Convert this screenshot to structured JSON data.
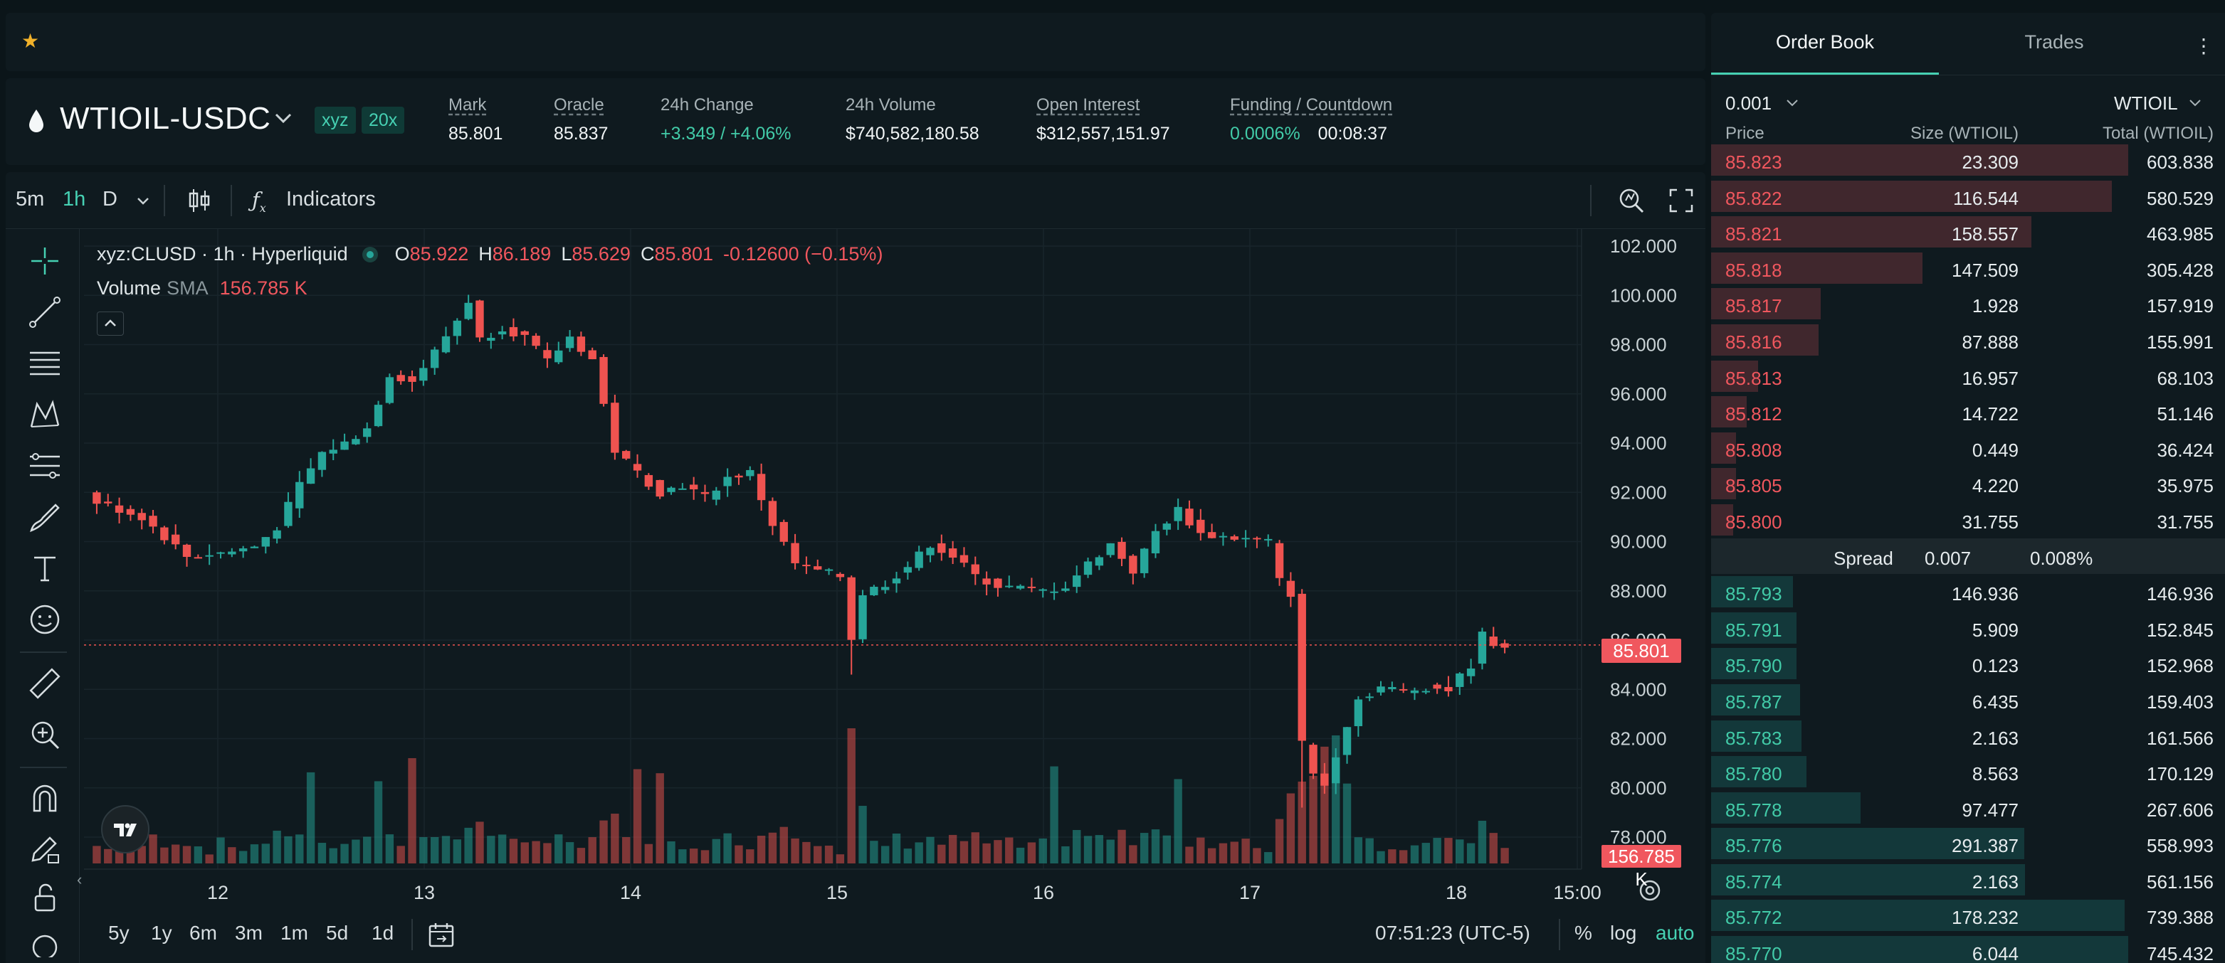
{
  "favorites": {
    "star_icon": "star-icon"
  },
  "market": {
    "symbol": "WTIOIL-USDC",
    "badge_dex": "xyz",
    "badge_leverage": "20x",
    "stats": [
      {
        "label": "Mark",
        "value": "85.801"
      },
      {
        "label": "Oracle",
        "value": "85.837"
      },
      {
        "label": "24h Change",
        "value": "+3.349 / +4.06%"
      },
      {
        "label": "24h Volume",
        "value": "$740,582,180.58"
      },
      {
        "label": "Open Interest",
        "value": "$312,557,151.97"
      },
      {
        "label": "Funding / Countdown",
        "value": "0.0006%",
        "value2": "00:08:37"
      }
    ]
  },
  "toolbar": {
    "intervals": [
      "5m",
      "1h",
      "D"
    ],
    "active_interval": "1h",
    "indicators_label": "Indicators"
  },
  "legend": {
    "title": "xyz:CLUSD · 1h · Hyperliquid",
    "open_label": "O",
    "open": "85.922",
    "high_label": "H",
    "high": "86.189",
    "low_label": "L",
    "low": "85.629",
    "close_label": "C",
    "close": "85.801",
    "change": "-0.12600 (−0.15%)",
    "volume_label": "Volume",
    "sma_label": "SMA",
    "volume_value": "156.785 K"
  },
  "chart_data": {
    "type": "candlestick",
    "y_ticks": [
      "102.000",
      "100.000",
      "98.000",
      "96.000",
      "94.000",
      "92.000",
      "90.000",
      "88.000",
      "86.000",
      "84.000",
      "82.000",
      "80.000",
      "78.000"
    ],
    "x_ticks": [
      "12",
      "13",
      "14",
      "15",
      "16",
      "17",
      "18",
      "15:00"
    ],
    "ylim": [
      77.5,
      102.5
    ],
    "last_price": 85.801,
    "last_price_label": "85.801",
    "last_volume_label": "156.785 K",
    "close_path": [
      [
        0,
        91.6
      ],
      [
        4,
        91.0
      ],
      [
        8,
        89.4
      ],
      [
        12,
        89.6
      ],
      [
        14,
        89.8
      ],
      [
        16,
        90.6
      ],
      [
        18,
        92.3
      ],
      [
        20,
        93.6
      ],
      [
        22,
        94.0
      ],
      [
        24,
        94.6
      ],
      [
        26,
        96.8
      ],
      [
        28,
        96.5
      ],
      [
        30,
        97.7
      ],
      [
        32,
        99.0
      ],
      [
        33,
        99.8
      ],
      [
        34,
        98.2
      ],
      [
        36,
        98.7
      ],
      [
        38,
        98.3
      ],
      [
        40,
        97.3
      ],
      [
        42,
        98.3
      ],
      [
        44,
        97.4
      ],
      [
        46,
        93.7
      ],
      [
        48,
        92.8
      ],
      [
        50,
        92.0
      ],
      [
        52,
        92.3
      ],
      [
        54,
        91.8
      ],
      [
        56,
        92.6
      ],
      [
        58,
        92.8
      ],
      [
        60,
        90.7
      ],
      [
        62,
        89.1
      ],
      [
        64,
        88.8
      ],
      [
        66,
        88.6
      ],
      [
        67,
        86.1
      ],
      [
        68,
        87.9
      ],
      [
        70,
        88.3
      ],
      [
        72,
        89.0
      ],
      [
        74,
        89.9
      ],
      [
        76,
        89.4
      ],
      [
        78,
        88.6
      ],
      [
        80,
        88.2
      ],
      [
        82,
        88.1
      ],
      [
        84,
        88.0
      ],
      [
        86,
        88.2
      ],
      [
        88,
        89.1
      ],
      [
        90,
        89.9
      ],
      [
        92,
        88.8
      ],
      [
        94,
        90.4
      ],
      [
        96,
        91.3
      ],
      [
        98,
        90.3
      ],
      [
        100,
        90.2
      ],
      [
        102,
        90.1
      ],
      [
        104,
        90.0
      ],
      [
        105,
        88.4
      ],
      [
        106,
        87.9
      ],
      [
        107,
        81.8
      ],
      [
        108,
        80.6
      ],
      [
        109,
        80.1
      ],
      [
        110,
        81.4
      ],
      [
        111,
        82.6
      ],
      [
        112,
        83.6
      ],
      [
        114,
        84.1
      ],
      [
        116,
        83.9
      ],
      [
        118,
        84.1
      ],
      [
        120,
        84.0
      ],
      [
        122,
        85.0
      ],
      [
        123,
        86.2
      ],
      [
        124,
        85.9
      ],
      [
        125,
        85.8
      ]
    ],
    "bars": 126
  },
  "left_tools": [
    "crosshair-icon",
    "trend-line-icon",
    "horizontal-lines-icon",
    "pattern-icon",
    "fib-icon",
    "brush-icon",
    "text-icon",
    "emoji-icon",
    "ruler-icon",
    "zoom-in-icon",
    "magnet-icon",
    "lock-drawing-icon",
    "unlock-icon"
  ],
  "bottom": {
    "ranges": [
      "5y",
      "1y",
      "6m",
      "3m",
      "1m",
      "5d",
      "1d"
    ],
    "time": "07:51:23 (UTC-5)",
    "percent": "%",
    "log": "log",
    "auto": "auto"
  },
  "orderbook": {
    "tab_orderbook": "Order Book",
    "tab_trades": "Trades",
    "tick": "0.001",
    "asset": "WTIOIL",
    "col_price": "Price",
    "col_size": "Size (WTIOIL)",
    "col_total": "Total (WTIOIL)",
    "asks": [
      {
        "price": "85.823",
        "size": "23.309",
        "total": "603.838",
        "depth": 1.0
      },
      {
        "price": "85.822",
        "size": "116.544",
        "total": "580.529",
        "depth": 0.961
      },
      {
        "price": "85.821",
        "size": "158.557",
        "total": "463.985",
        "depth": 0.768
      },
      {
        "price": "85.818",
        "size": "147.509",
        "total": "305.428",
        "depth": 0.506
      },
      {
        "price": "85.817",
        "size": "1.928",
        "total": "157.919",
        "depth": 0.262
      },
      {
        "price": "85.816",
        "size": "87.888",
        "total": "155.991",
        "depth": 0.258
      },
      {
        "price": "85.813",
        "size": "16.957",
        "total": "68.103",
        "depth": 0.113
      },
      {
        "price": "85.812",
        "size": "14.722",
        "total": "51.146",
        "depth": 0.085
      },
      {
        "price": "85.808",
        "size": "0.449",
        "total": "36.424",
        "depth": 0.06
      },
      {
        "price": "85.805",
        "size": "4.220",
        "total": "35.975",
        "depth": 0.06
      },
      {
        "price": "85.800",
        "size": "31.755",
        "total": "31.755",
        "depth": 0.053
      }
    ],
    "spread_label": "Spread",
    "spread_value": "0.007",
    "spread_pct": "0.008%",
    "bids": [
      {
        "price": "85.793",
        "size": "146.936",
        "total": "146.936",
        "depth": 0.197
      },
      {
        "price": "85.791",
        "size": "5.909",
        "total": "152.845",
        "depth": 0.205
      },
      {
        "price": "85.790",
        "size": "0.123",
        "total": "152.968",
        "depth": 0.205
      },
      {
        "price": "85.787",
        "size": "6.435",
        "total": "159.403",
        "depth": 0.214
      },
      {
        "price": "85.783",
        "size": "2.163",
        "total": "161.566",
        "depth": 0.217
      },
      {
        "price": "85.780",
        "size": "8.563",
        "total": "170.129",
        "depth": 0.228
      },
      {
        "price": "85.778",
        "size": "97.477",
        "total": "267.606",
        "depth": 0.359
      },
      {
        "price": "85.776",
        "size": "291.387",
        "total": "558.993",
        "depth": 0.75
      },
      {
        "price": "85.774",
        "size": "2.163",
        "total": "561.156",
        "depth": 0.753
      },
      {
        "price": "85.772",
        "size": "178.232",
        "total": "739.388",
        "depth": 0.992
      },
      {
        "price": "85.770",
        "size": "6.044",
        "total": "745.432",
        "depth": 1.0
      }
    ]
  },
  "colors": {
    "up": "#26a69a",
    "down": "#ef5350",
    "accent": "#46d1b3",
    "background": "#0b1519"
  }
}
